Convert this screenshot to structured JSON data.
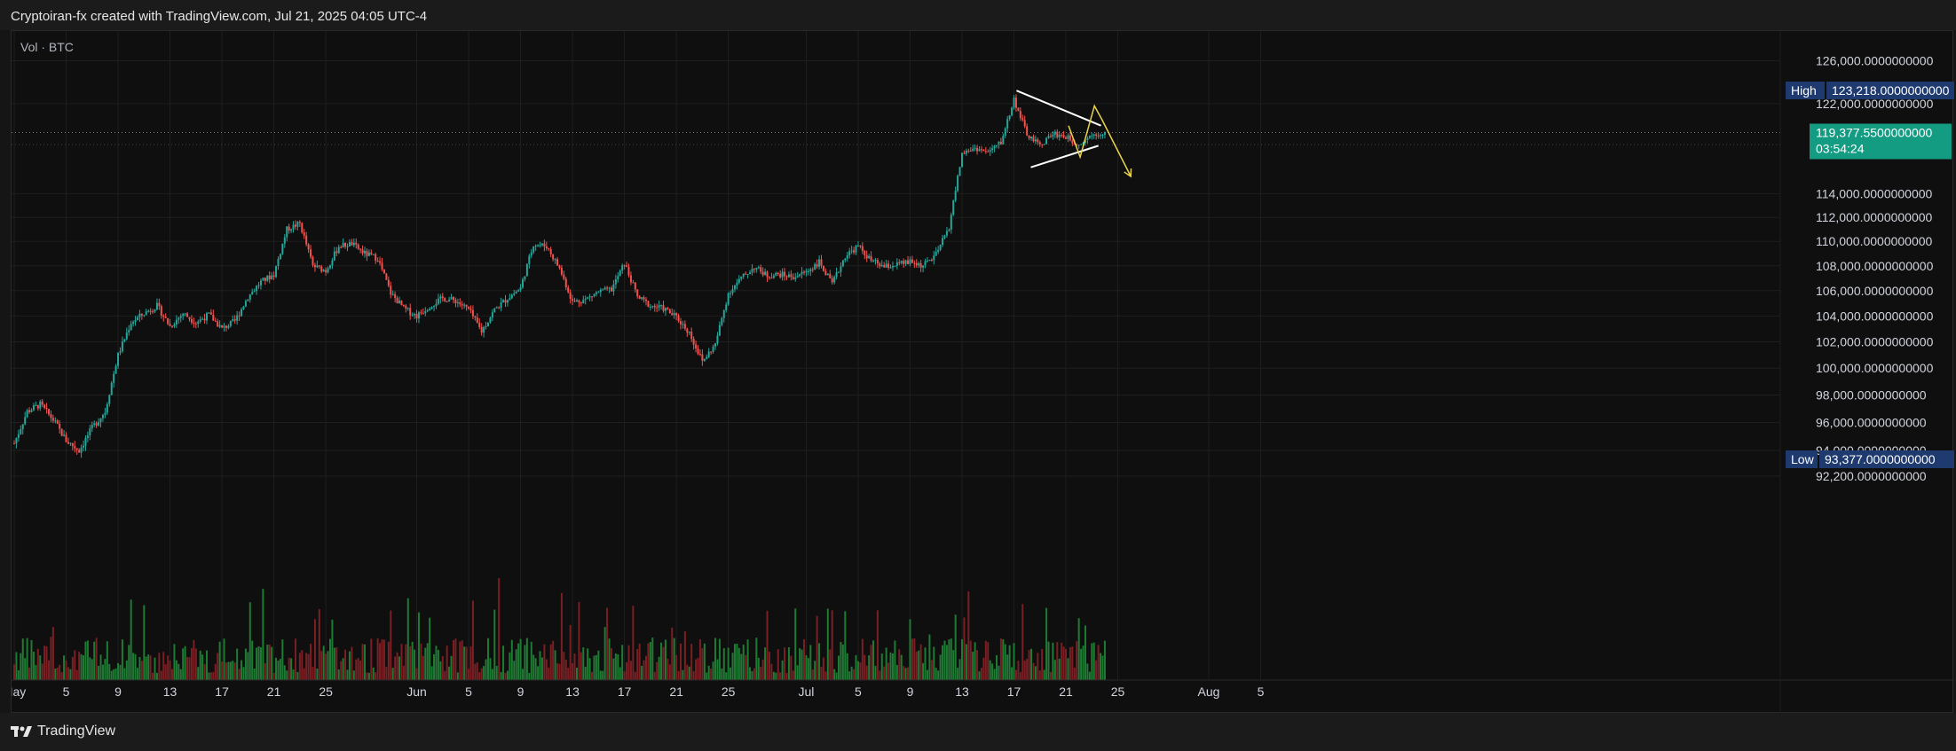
{
  "header": {
    "title": "Cryptoiran-fx created with TradingView.com, Jul 21, 2025 04:05 UTC-4"
  },
  "indicator": {
    "label": "Vol · BTC"
  },
  "footer": {
    "brand": "TradingView"
  },
  "colors": {
    "up": "#26a69a",
    "down": "#ef5350",
    "vol_up": "#1f7a34",
    "vol_down": "#7a1f23",
    "grid": "#1f1f1f",
    "axis_text": "#d1d4dc",
    "badge_bg": "#1e3a6e",
    "price_badge": "#149c83",
    "trendline": "#ffffff",
    "projection": "#e8d44d"
  },
  "chart_data": {
    "type": "candlestick",
    "y_axis": {
      "ticks": [
        "126,000.0000000000",
        "122,000.0000000000",
        "114,000.0000000000",
        "112,000.0000000000",
        "110,000.0000000000",
        "108,000.0000000000",
        "106,000.0000000000",
        "104,000.0000000000",
        "102,000.0000000000",
        "100,000.0000000000",
        "98,000.0000000000",
        "96,000.0000000000",
        "94,000.0000000000",
        "92,200.0000000000"
      ],
      "tick_values": [
        126000,
        122000,
        114000,
        112000,
        110000,
        108000,
        106000,
        104000,
        102000,
        100000,
        98000,
        96000,
        94000,
        92200
      ]
    },
    "x_axis": {
      "tick_labels": [
        "May",
        "5",
        "9",
        "13",
        "17",
        "21",
        "25",
        "Jun",
        "5",
        "9",
        "13",
        "17",
        "21",
        "25",
        "Jul",
        "5",
        "9",
        "13",
        "17",
        "21",
        "25",
        "Aug",
        "5"
      ],
      "tick_days": [
        0,
        4,
        8,
        12,
        16,
        20,
        24,
        31,
        35,
        39,
        43,
        47,
        51,
        55,
        61,
        65,
        69,
        73,
        77,
        81,
        85,
        92,
        96
      ]
    },
    "high": {
      "label": "High",
      "value": "123,218.0000000000",
      "price": 123218
    },
    "low": {
      "label": "Low",
      "value": "93,377.0000000000",
      "price": 93377
    },
    "last": {
      "value": "119,377.5500000000",
      "countdown": "03:54:24",
      "price": 119377.55
    },
    "close_path": [
      [
        0,
        94500
      ],
      [
        1,
        96800
      ],
      [
        2,
        97300
      ],
      [
        3,
        96200
      ],
      [
        4,
        94700
      ],
      [
        5,
        94000
      ],
      [
        6,
        95600
      ],
      [
        7,
        96800
      ],
      [
        8,
        101000
      ],
      [
        9,
        103500
      ],
      [
        10,
        104200
      ],
      [
        11,
        104800
      ],
      [
        12,
        103200
      ],
      [
        13,
        104200
      ],
      [
        14,
        103500
      ],
      [
        15,
        104100
      ],
      [
        16,
        103000
      ],
      [
        17,
        103600
      ],
      [
        18,
        105500
      ],
      [
        19,
        106700
      ],
      [
        20,
        107300
      ],
      [
        21,
        111000
      ],
      [
        22,
        111500
      ],
      [
        23,
        108000
      ],
      [
        24,
        107600
      ],
      [
        25,
        109600
      ],
      [
        26,
        109800
      ],
      [
        27,
        109000
      ],
      [
        28,
        108600
      ],
      [
        29,
        105800
      ],
      [
        30,
        104600
      ],
      [
        31,
        104000
      ],
      [
        32,
        104800
      ],
      [
        33,
        105400
      ],
      [
        34,
        105200
      ],
      [
        35,
        104500
      ],
      [
        36,
        102800
      ],
      [
        37,
        104500
      ],
      [
        38,
        105400
      ],
      [
        39,
        106200
      ],
      [
        40,
        109800
      ],
      [
        41,
        109600
      ],
      [
        42,
        107800
      ],
      [
        43,
        105100
      ],
      [
        44,
        105300
      ],
      [
        45,
        105900
      ],
      [
        46,
        106100
      ],
      [
        47,
        108200
      ],
      [
        48,
        105500
      ],
      [
        49,
        104800
      ],
      [
        50,
        104600
      ],
      [
        51,
        103900
      ],
      [
        52,
        102700
      ],
      [
        53,
        100500
      ],
      [
        54,
        101800
      ],
      [
        55,
        105800
      ],
      [
        56,
        107000
      ],
      [
        57,
        107900
      ],
      [
        58,
        107200
      ],
      [
        59,
        107300
      ],
      [
        60,
        107100
      ],
      [
        61,
        107500
      ],
      [
        62,
        108300
      ],
      [
        63,
        106500
      ],
      [
        64,
        108800
      ],
      [
        65,
        109600
      ],
      [
        66,
        108400
      ],
      [
        67,
        107900
      ],
      [
        68,
        108100
      ],
      [
        69,
        108300
      ],
      [
        70,
        108000
      ],
      [
        71,
        108900
      ],
      [
        72,
        111200
      ],
      [
        73,
        117500
      ],
      [
        74,
        118000
      ],
      [
        75,
        117600
      ],
      [
        76,
        118500
      ],
      [
        77,
        122400
      ],
      [
        78,
        119200
      ],
      [
        79,
        118200
      ],
      [
        80,
        119300
      ],
      [
        81,
        119000
      ],
      [
        82,
        118300
      ],
      [
        83,
        119200
      ],
      [
        84,
        119377
      ]
    ],
    "trendlines": [
      {
        "name": "resistance",
        "points": [
          [
            77.2,
            123200
          ],
          [
            83.7,
            120000
          ]
        ]
      },
      {
        "name": "support",
        "points": [
          [
            78.3,
            116300
          ],
          [
            83.5,
            118200
          ]
        ]
      }
    ],
    "projection": [
      [
        81.2,
        120000
      ],
      [
        82.1,
        117200
      ],
      [
        83.2,
        121800
      ],
      [
        83.8,
        120500
      ],
      [
        86,
        115500
      ]
    ]
  }
}
